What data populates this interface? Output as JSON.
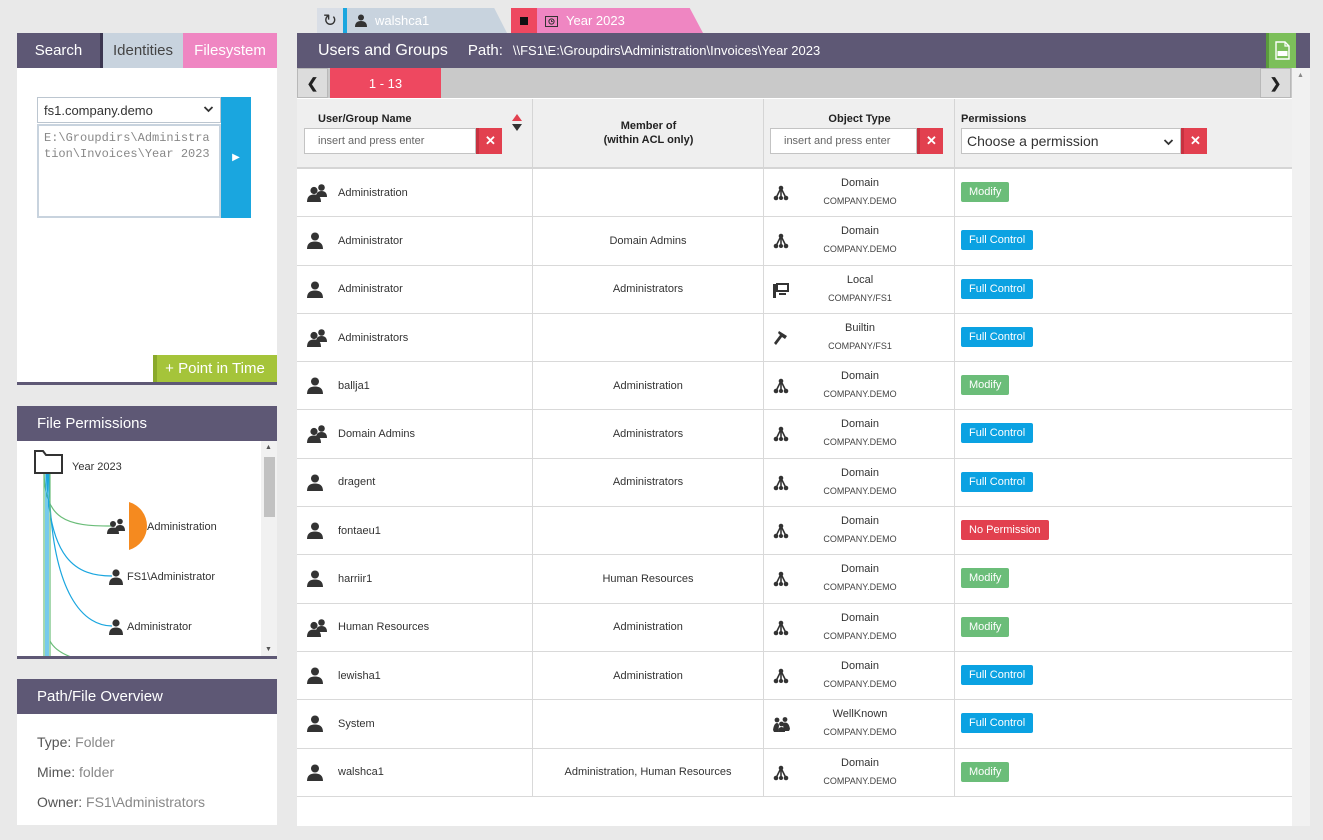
{
  "top_tabs": {
    "user_tab": "walshca1",
    "folder_tab": "Year 2023"
  },
  "left_tabs": {
    "search": "Search",
    "identities": "Identities",
    "filesystem": "Filesystem"
  },
  "server_select": "fs1.company.demo",
  "path_text": "E:\\Groupdirs\\Administration\\Invoices\\Year 2023",
  "point_in_time": "+ Point in Time",
  "file_permissions": {
    "title": "File Permissions",
    "root": "Year 2023",
    "nodes": [
      "Administration",
      "FS1\\Administrator",
      "Administrator"
    ]
  },
  "overview": {
    "title": "Path/File Overview",
    "type_label": "Type:",
    "type_value": "Folder",
    "mime_label": "Mime:",
    "mime_value": "folder",
    "owner_label": "Owner:",
    "owner_value": "FS1\\Administrators"
  },
  "main": {
    "title": "Users and Groups",
    "path_label": "Path:",
    "path_value": "\\\\FS1\\E:\\Groupdirs\\Administration\\Invoices\\Year 2023"
  },
  "pager": {
    "current": "1 - 13"
  },
  "columns": {
    "name": "User/Group Name",
    "member_of_1": "Member of",
    "member_of_2": "(within ACL only)",
    "object_type": "Object Type",
    "permissions": "Permissions",
    "filter_placeholder": "insert and press enter",
    "permission_placeholder": "Choose a permission"
  },
  "colors": {
    "header": "#5e5875",
    "accent_red": "#ee4860",
    "accent_pink": "#ef86c2",
    "accent_blue": "#1aa6df",
    "accent_green": "#a5c43a",
    "modify": "#6bbd79",
    "full_control": "#0ba2e2",
    "no_permission": "#e2404f"
  },
  "rows": [
    {
      "icon": "group-icon",
      "name": "Administration",
      "member_of": "",
      "type_icon": "domain-icon",
      "type": "Domain",
      "scope": "COMPANY.DEMO",
      "permission": "Modify",
      "perm_class": "modify"
    },
    {
      "icon": "user-icon",
      "name": "Administrator",
      "member_of": "Domain Admins",
      "type_icon": "domain-icon",
      "type": "Domain",
      "scope": "COMPANY.DEMO",
      "permission": "Full Control",
      "perm_class": "full"
    },
    {
      "icon": "user-icon",
      "name": "Administrator",
      "member_of": "Administrators",
      "type_icon": "local-computer-icon",
      "type": "Local",
      "scope": "COMPANY/FS1",
      "permission": "Full Control",
      "perm_class": "full"
    },
    {
      "icon": "group-icon",
      "name": "Administrators",
      "member_of": "",
      "type_icon": "builtin-hammer-icon",
      "type": "Builtin",
      "scope": "COMPANY/FS1",
      "permission": "Full Control",
      "perm_class": "full"
    },
    {
      "icon": "user-icon",
      "name": "ballja1",
      "member_of": "Administration",
      "type_icon": "domain-icon",
      "type": "Domain",
      "scope": "COMPANY.DEMO",
      "permission": "Modify",
      "perm_class": "modify"
    },
    {
      "icon": "group-icon",
      "name": "Domain Admins",
      "member_of": "Administrators",
      "type_icon": "domain-icon",
      "type": "Domain",
      "scope": "COMPANY.DEMO",
      "permission": "Full Control",
      "perm_class": "full"
    },
    {
      "icon": "user-icon",
      "name": "dragent",
      "member_of": "Administrators",
      "type_icon": "domain-icon",
      "type": "Domain",
      "scope": "COMPANY.DEMO",
      "permission": "Full Control",
      "perm_class": "full"
    },
    {
      "icon": "user-icon",
      "name": "fontaeu1",
      "member_of": "",
      "type_icon": "domain-icon",
      "type": "Domain",
      "scope": "COMPANY.DEMO",
      "permission": "No Permission",
      "perm_class": "none"
    },
    {
      "icon": "user-icon",
      "name": "harriir1",
      "member_of": "Human Resources",
      "type_icon": "domain-icon",
      "type": "Domain",
      "scope": "COMPANY.DEMO",
      "permission": "Modify",
      "perm_class": "modify"
    },
    {
      "icon": "group-icon",
      "name": "Human Resources",
      "member_of": "Administration",
      "type_icon": "domain-icon",
      "type": "Domain",
      "scope": "COMPANY.DEMO",
      "permission": "Modify",
      "perm_class": "modify"
    },
    {
      "icon": "user-icon",
      "name": "lewisha1",
      "member_of": "Administration",
      "type_icon": "domain-icon",
      "type": "Domain",
      "scope": "COMPANY.DEMO",
      "permission": "Full Control",
      "perm_class": "full"
    },
    {
      "icon": "user-icon",
      "name": "System",
      "member_of": "",
      "type_icon": "wellknown-icon",
      "type": "WellKnown",
      "scope": "COMPANY.DEMO",
      "permission": "Full Control",
      "perm_class": "full"
    },
    {
      "icon": "user-icon",
      "name": "walshca1",
      "member_of": "Administration, Human Resources",
      "type_icon": "domain-icon",
      "type": "Domain",
      "scope": "COMPANY.DEMO",
      "permission": "Modify",
      "perm_class": "modify"
    }
  ]
}
